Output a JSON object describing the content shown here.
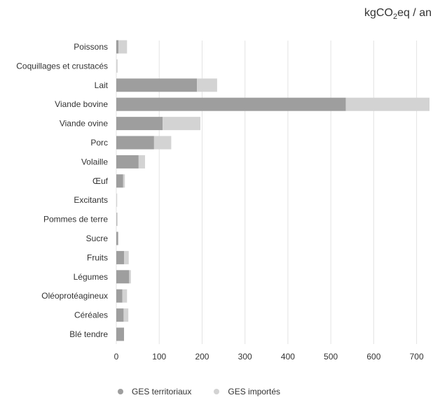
{
  "chart_data": {
    "type": "bar",
    "orientation": "horizontal",
    "stacked": true,
    "unit": {
      "prefix": "kgCO",
      "subscript": "2",
      "suffix": "eq / an"
    },
    "categories": [
      "Poissons",
      "Coquillages et crustacés",
      "Lait",
      "Viande bovine",
      "Viande ovine",
      "Porc",
      "Volaille",
      "Œuf",
      "Excitants",
      "Pommes de terre",
      "Sucre",
      "Fruits",
      "Légumes",
      "Oléoprotéagineux",
      "Céréales",
      "Blé tendre"
    ],
    "series": [
      {
        "name": "GES territoriaux",
        "color": "#9e9e9e",
        "values": [
          5,
          0,
          188,
          535,
          108,
          88,
          52,
          16,
          0,
          1,
          4,
          18,
          30,
          14,
          17,
          18
        ]
      },
      {
        "name": "GES importés",
        "color": "#d3d3d3",
        "values": [
          20,
          3,
          47,
          195,
          88,
          40,
          15,
          4,
          2,
          2,
          1,
          11,
          4,
          11,
          11,
          0
        ]
      }
    ],
    "xlim": [
      0,
      730
    ],
    "xticks": [
      0,
      100,
      200,
      300,
      400,
      500,
      600,
      700
    ],
    "grid": "vertical",
    "legend_position": "bottom"
  }
}
